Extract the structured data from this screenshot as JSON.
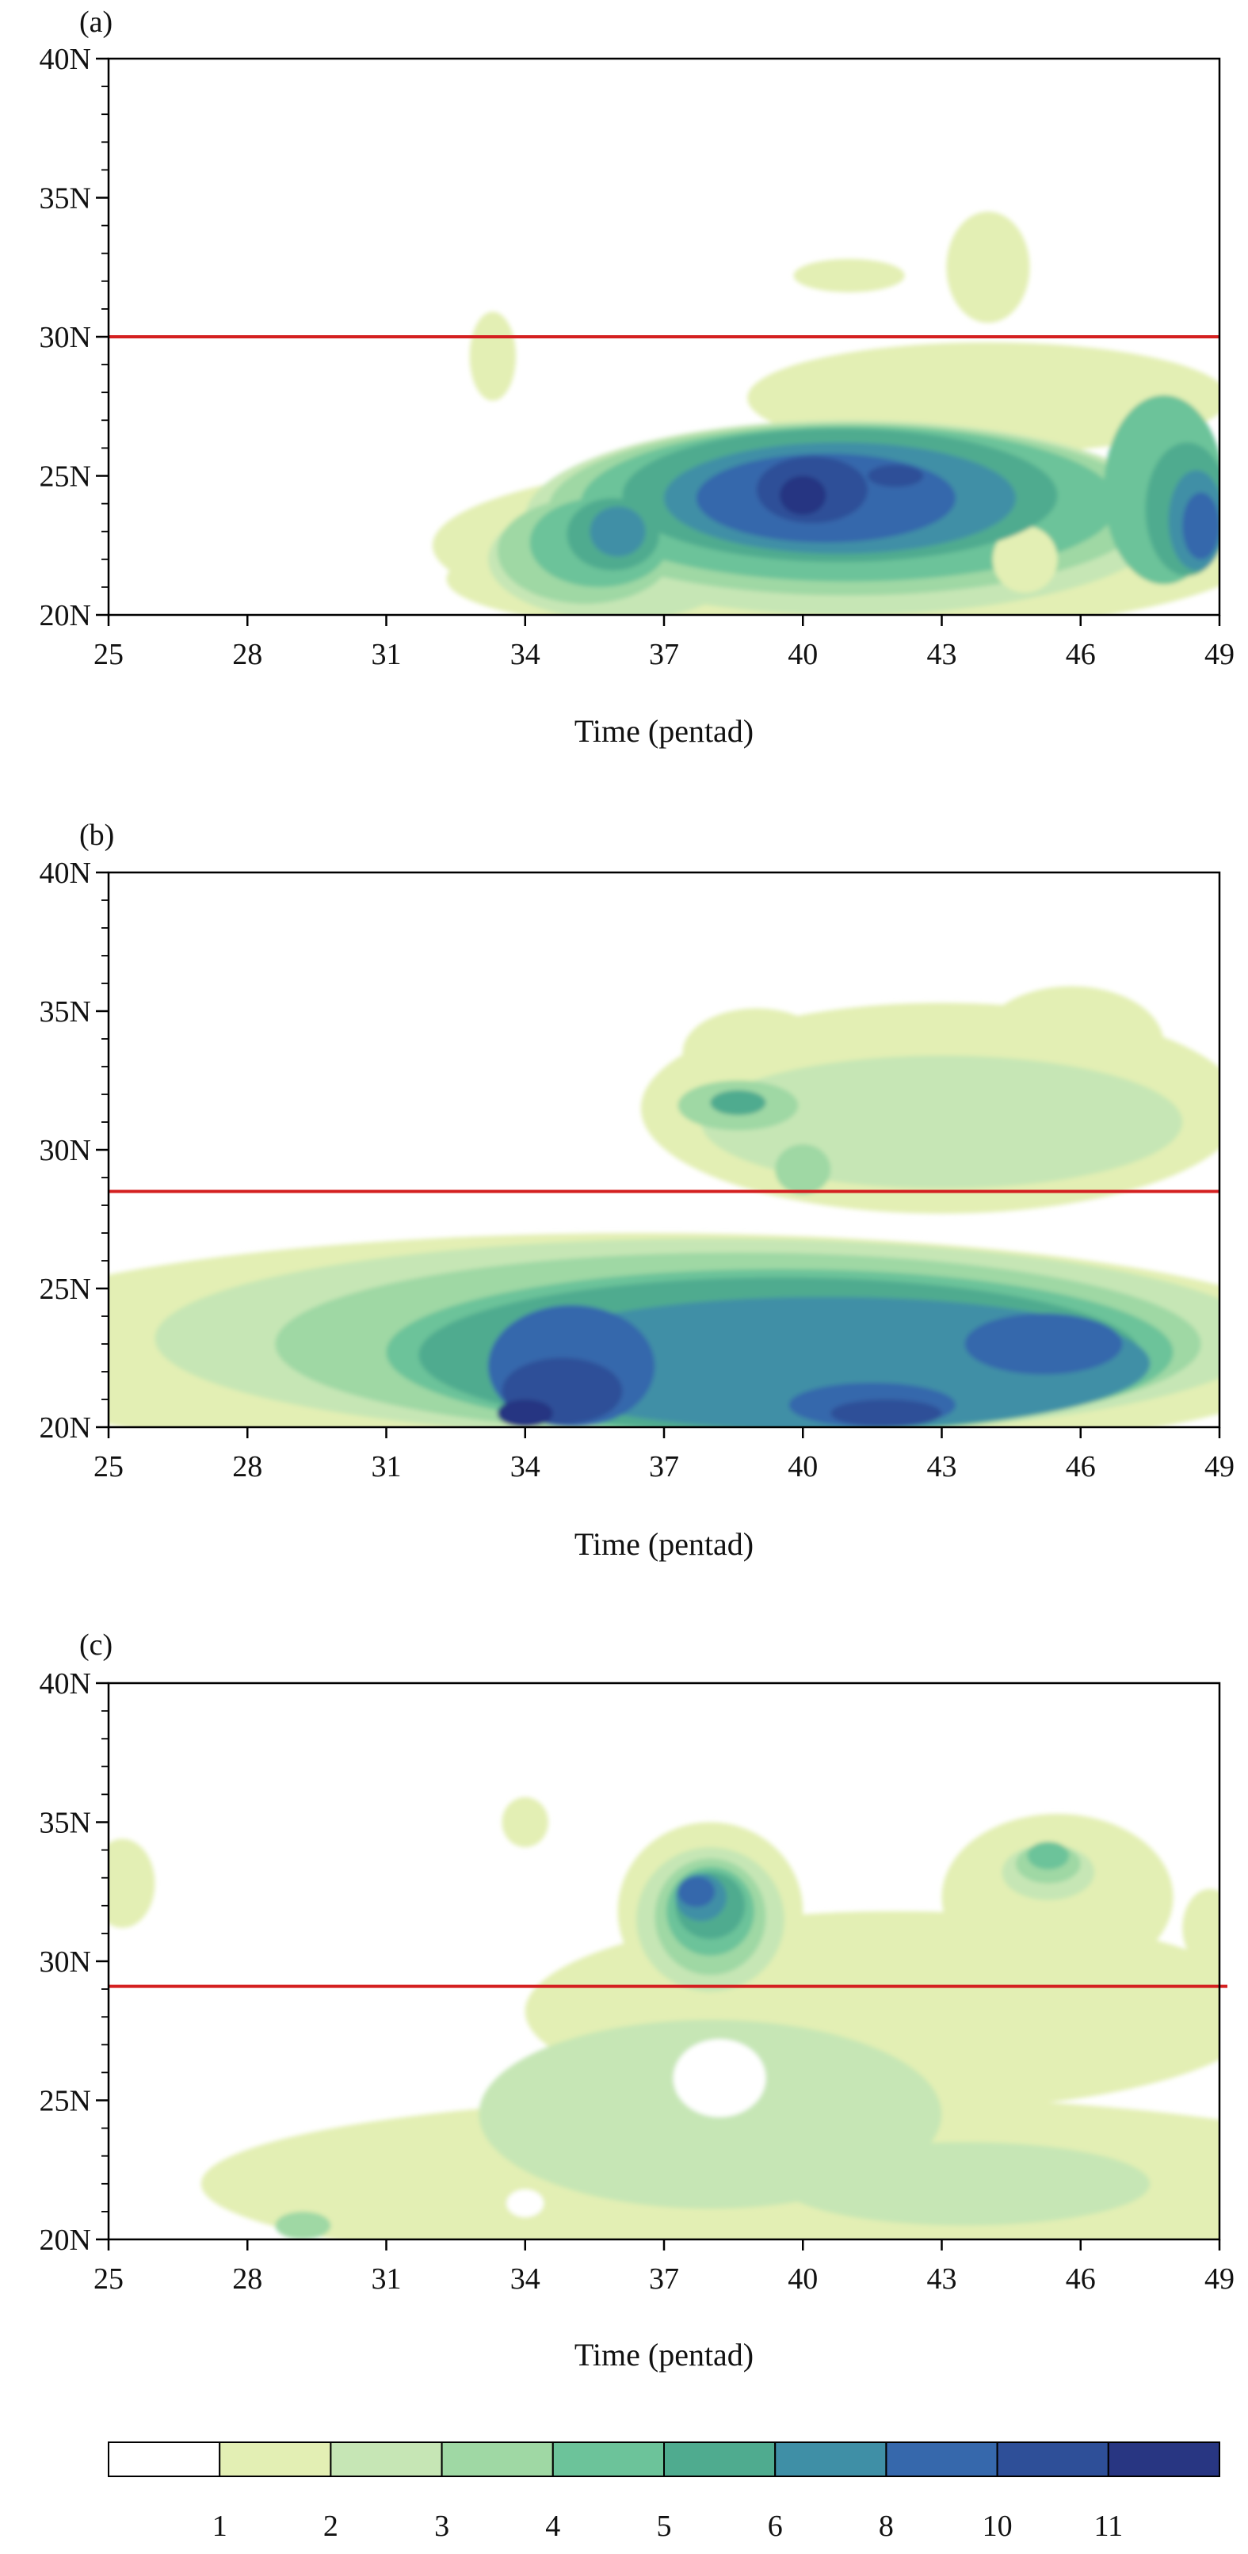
{
  "levels": [
    1,
    2,
    3,
    4,
    5,
    6,
    8,
    10,
    11
  ],
  "palette": [
    "#ffffff",
    "#e3efb4",
    "#c6e6b5",
    "#9fd8a4",
    "#6cc39a",
    "#4fab8f",
    "#3f8fa6",
    "#3668ac",
    "#2e4f98",
    "#283682"
  ],
  "colors": {
    "threshold_line": "#d42020",
    "frame": "#000000"
  },
  "chart_data": [
    {
      "type": "heatmap",
      "panel_label": "(a)",
      "xlabel": "Time (pentad)",
      "ylabel": "",
      "xlim": [
        25,
        49
      ],
      "ylim": [
        20,
        40
      ],
      "x_ticks": [
        "25",
        "28",
        "31",
        "34",
        "37",
        "40",
        "43",
        "46",
        "49"
      ],
      "y_ticks": [
        "20N",
        "25N",
        "30N",
        "35N",
        "40N"
      ],
      "threshold_lat": 30.0,
      "blobs": [
        {
          "x": 41,
          "y": 22.5,
          "rx": 9,
          "ry": 3.2,
          "level": 1
        },
        {
          "x": 37.5,
          "y": 21.3,
          "rx": 5.2,
          "ry": 1.8,
          "level": 1
        },
        {
          "x": 44,
          "y": 27.8,
          "rx": 5.2,
          "ry": 2.0,
          "level": 1
        },
        {
          "x": 44,
          "y": 32.5,
          "rx": 0.9,
          "ry": 2.0,
          "level": 1
        },
        {
          "x": 41,
          "y": 32.2,
          "rx": 1.2,
          "ry": 0.6,
          "level": 1
        },
        {
          "x": 33.3,
          "y": 29.3,
          "rx": 0.5,
          "ry": 1.6,
          "level": 1
        },
        {
          "x": 41,
          "y": 23.5,
          "rx": 7,
          "ry": 3.5,
          "level": 2
        },
        {
          "x": 36,
          "y": 22.0,
          "rx": 2.8,
          "ry": 2.2,
          "level": 2
        },
        {
          "x": 41,
          "y": 23.8,
          "rx": 6.5,
          "ry": 3.1,
          "level": 3
        },
        {
          "x": 35.3,
          "y": 22.3,
          "rx": 1.9,
          "ry": 1.9,
          "level": 3
        },
        {
          "x": 41,
          "y": 24.0,
          "rx": 5.8,
          "ry": 2.8,
          "level": 4
        },
        {
          "x": 35.6,
          "y": 22.6,
          "rx": 1.5,
          "ry": 1.6,
          "level": 4
        },
        {
          "x": 47.8,
          "y": 24.5,
          "rx": 1.3,
          "ry": 3.4,
          "level": 4
        },
        {
          "x": 44.8,
          "y": 22.0,
          "rx": 0.7,
          "ry": 1.2,
          "level": 1
        },
        {
          "x": 40.8,
          "y": 24.3,
          "rx": 4.7,
          "ry": 2.4,
          "level": 5
        },
        {
          "x": 35.9,
          "y": 22.9,
          "rx": 1.0,
          "ry": 1.3,
          "level": 5
        },
        {
          "x": 48.3,
          "y": 23.8,
          "rx": 0.9,
          "ry": 2.4,
          "level": 5
        },
        {
          "x": 40.8,
          "y": 24.2,
          "rx": 3.8,
          "ry": 2.0,
          "level": 6
        },
        {
          "x": 36.0,
          "y": 23.0,
          "rx": 0.6,
          "ry": 0.9,
          "level": 6
        },
        {
          "x": 48.5,
          "y": 23.4,
          "rx": 0.6,
          "ry": 1.8,
          "level": 6
        },
        {
          "x": 40.5,
          "y": 24.2,
          "rx": 2.8,
          "ry": 1.6,
          "level": 7
        },
        {
          "x": 48.6,
          "y": 23.2,
          "rx": 0.4,
          "ry": 1.2,
          "level": 7
        },
        {
          "x": 40.2,
          "y": 24.5,
          "rx": 1.2,
          "ry": 1.2,
          "level": 8
        },
        {
          "x": 42.0,
          "y": 25.0,
          "rx": 0.6,
          "ry": 0.4,
          "level": 8
        },
        {
          "x": 40.0,
          "y": 24.3,
          "rx": 0.5,
          "ry": 0.7,
          "level": 9
        }
      ]
    },
    {
      "type": "heatmap",
      "panel_label": "(b)",
      "xlabel": "Time (pentad)",
      "ylabel": "",
      "xlim": [
        25,
        49
      ],
      "ylim": [
        20,
        40
      ],
      "x_ticks": [
        "25",
        "28",
        "31",
        "34",
        "37",
        "40",
        "43",
        "46",
        "49"
      ],
      "y_ticks": [
        "20N",
        "25N",
        "30N",
        "35N",
        "40N"
      ],
      "threshold_lat": 28.5,
      "blobs": [
        {
          "x": 36.5,
          "y": 22.8,
          "rx": 15,
          "ry": 4.2,
          "level": 1
        },
        {
          "x": 43,
          "y": 31.5,
          "rx": 6.5,
          "ry": 3.8,
          "level": 1
        },
        {
          "x": 45.8,
          "y": 33.8,
          "rx": 2.0,
          "ry": 2.1,
          "level": 1
        },
        {
          "x": 39,
          "y": 33.5,
          "rx": 1.6,
          "ry": 1.6,
          "level": 1
        },
        {
          "x": 38,
          "y": 23.2,
          "rx": 12,
          "ry": 3.6,
          "level": 2
        },
        {
          "x": 43,
          "y": 31.0,
          "rx": 5.2,
          "ry": 2.4,
          "level": 2
        },
        {
          "x": 38.6,
          "y": 23.0,
          "rx": 10,
          "ry": 3.3,
          "level": 3
        },
        {
          "x": 38.6,
          "y": 31.6,
          "rx": 1.3,
          "ry": 0.9,
          "level": 3
        },
        {
          "x": 40.0,
          "y": 29.3,
          "rx": 0.6,
          "ry": 0.9,
          "level": 3
        },
        {
          "x": 39.5,
          "y": 22.7,
          "rx": 8.5,
          "ry": 3.0,
          "level": 4
        },
        {
          "x": 38.6,
          "y": 31.7,
          "rx": 0.6,
          "ry": 0.45,
          "level": 5
        },
        {
          "x": 39.5,
          "y": 22.6,
          "rx": 7.8,
          "ry": 2.8,
          "level": 5
        },
        {
          "x": 40.5,
          "y": 22.3,
          "rx": 7.0,
          "ry": 2.4,
          "level": 6
        },
        {
          "x": 35.0,
          "y": 22.2,
          "rx": 1.8,
          "ry": 2.2,
          "level": 7
        },
        {
          "x": 45.2,
          "y": 23.0,
          "rx": 1.7,
          "ry": 1.1,
          "level": 7
        },
        {
          "x": 41.5,
          "y": 20.8,
          "rx": 1.8,
          "ry": 0.8,
          "level": 7
        },
        {
          "x": 34.8,
          "y": 21.3,
          "rx": 1.3,
          "ry": 1.2,
          "level": 8
        },
        {
          "x": 41.8,
          "y": 20.5,
          "rx": 1.2,
          "ry": 0.5,
          "level": 8
        },
        {
          "x": 34.0,
          "y": 20.5,
          "rx": 0.6,
          "ry": 0.5,
          "level": 9
        }
      ]
    },
    {
      "type": "heatmap",
      "panel_label": "(c)",
      "xlabel": "Time (pentad)",
      "ylabel": "",
      "xlim": [
        25,
        49
      ],
      "ylim": [
        20,
        40
      ],
      "x_ticks": [
        "25",
        "28",
        "31",
        "34",
        "37",
        "40",
        "43",
        "46",
        "49"
      ],
      "y_ticks": [
        "20N",
        "25N",
        "30N",
        "35N",
        "40N"
      ],
      "threshold_lat": 29.1,
      "blobs": [
        {
          "x": 40,
          "y": 22.0,
          "rx": 13,
          "ry": 3.2,
          "level": 1
        },
        {
          "x": 42,
          "y": 28.2,
          "rx": 8.0,
          "ry": 3.6,
          "level": 1
        },
        {
          "x": 38.0,
          "y": 31.8,
          "rx": 2.0,
          "ry": 3.2,
          "level": 1
        },
        {
          "x": 45.5,
          "y": 32.3,
          "rx": 2.5,
          "ry": 3.0,
          "level": 1
        },
        {
          "x": 34.0,
          "y": 35.0,
          "rx": 0.5,
          "ry": 0.9,
          "level": 1
        },
        {
          "x": 25.3,
          "y": 32.8,
          "rx": 0.7,
          "ry": 1.6,
          "level": 1
        },
        {
          "x": 48.8,
          "y": 31.2,
          "rx": 0.6,
          "ry": 1.4,
          "level": 1
        },
        {
          "x": 38.0,
          "y": 31.5,
          "rx": 1.6,
          "ry": 2.6,
          "level": 2
        },
        {
          "x": 38.0,
          "y": 24.5,
          "rx": 5.0,
          "ry": 3.4,
          "level": 2
        },
        {
          "x": 43.5,
          "y": 22.0,
          "rx": 4.0,
          "ry": 1.5,
          "level": 2
        },
        {
          "x": 45.3,
          "y": 33.2,
          "rx": 1.0,
          "ry": 1.0,
          "level": 2
        },
        {
          "x": 38.0,
          "y": 31.6,
          "rx": 1.2,
          "ry": 2.1,
          "level": 3
        },
        {
          "x": 45.3,
          "y": 33.5,
          "rx": 0.7,
          "ry": 0.7,
          "level": 3
        },
        {
          "x": 29.2,
          "y": 20.5,
          "rx": 0.6,
          "ry": 0.5,
          "level": 3
        },
        {
          "x": 38.0,
          "y": 31.8,
          "rx": 0.95,
          "ry": 1.6,
          "level": 4
        },
        {
          "x": 45.3,
          "y": 33.8,
          "rx": 0.45,
          "ry": 0.5,
          "level": 4
        },
        {
          "x": 38.0,
          "y": 32.0,
          "rx": 0.75,
          "ry": 1.2,
          "level": 5
        },
        {
          "x": 37.8,
          "y": 32.3,
          "rx": 0.55,
          "ry": 0.85,
          "level": 6
        },
        {
          "x": 37.7,
          "y": 32.5,
          "rx": 0.4,
          "ry": 0.55,
          "level": 7
        },
        {
          "x": 38.2,
          "y": 25.8,
          "rx": 1.0,
          "ry": 1.4,
          "level": 0
        },
        {
          "x": 34.0,
          "y": 21.3,
          "rx": 0.4,
          "ry": 0.5,
          "level": 0
        }
      ]
    }
  ],
  "colorbar": {
    "labels": [
      "1",
      "2",
      "3",
      "4",
      "5",
      "6",
      "8",
      "10",
      "11"
    ]
  }
}
